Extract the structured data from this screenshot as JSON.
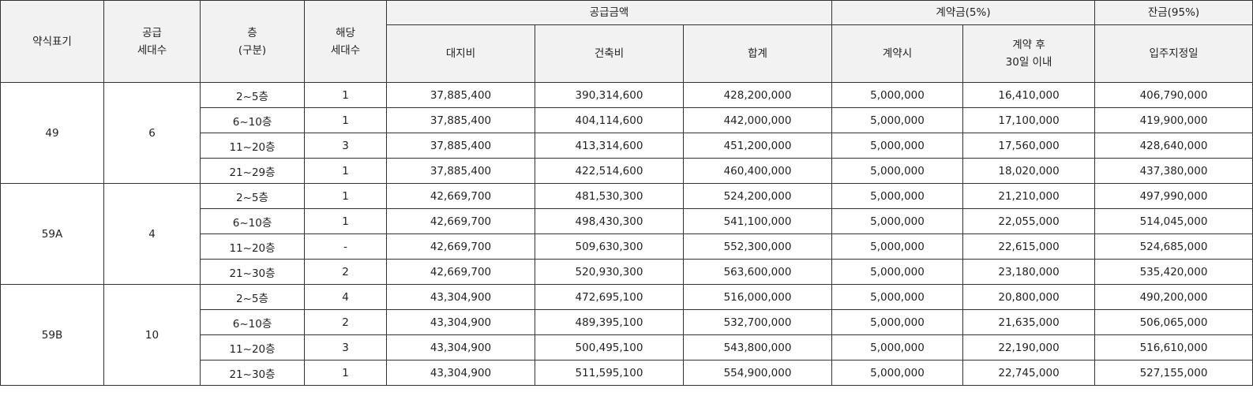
{
  "header": {
    "type_label": "약식표기",
    "supply_units": [
      "공급",
      "세대수"
    ],
    "floor": [
      "층",
      "(구분)"
    ],
    "units": [
      "해당",
      "세대수"
    ],
    "supply_price": "공급금액",
    "land": "대지비",
    "building": "건축비",
    "total": "합계",
    "deposit": "계약금(5%)",
    "at_contract": "계약시",
    "after_contract": [
      "계약 후",
      "30일 이내"
    ],
    "balance": "잔금(95%)",
    "move_in": "입주지정일"
  },
  "groups": [
    {
      "type": "49",
      "supply_units": "6",
      "rows": [
        {
          "floor": "2~5층",
          "units": "1",
          "land": "37,885,400",
          "building": "390,314,600",
          "total": "428,200,000",
          "at_contract": "5,000,000",
          "after_contract": "16,410,000",
          "balance": "406,790,000"
        },
        {
          "floor": "6~10층",
          "units": "1",
          "land": "37,885,400",
          "building": "404,114,600",
          "total": "442,000,000",
          "at_contract": "5,000,000",
          "after_contract": "17,100,000",
          "balance": "419,900,000"
        },
        {
          "floor": "11~20층",
          "units": "3",
          "land": "37,885,400",
          "building": "413,314,600",
          "total": "451,200,000",
          "at_contract": "5,000,000",
          "after_contract": "17,560,000",
          "balance": "428,640,000"
        },
        {
          "floor": "21~29층",
          "units": "1",
          "land": "37,885,400",
          "building": "422,514,600",
          "total": "460,400,000",
          "at_contract": "5,000,000",
          "after_contract": "18,020,000",
          "balance": "437,380,000"
        }
      ]
    },
    {
      "type": "59A",
      "supply_units": "4",
      "rows": [
        {
          "floor": "2~5층",
          "units": "1",
          "land": "42,669,700",
          "building": "481,530,300",
          "total": "524,200,000",
          "at_contract": "5,000,000",
          "after_contract": "21,210,000",
          "balance": "497,990,000"
        },
        {
          "floor": "6~10층",
          "units": "1",
          "land": "42,669,700",
          "building": "498,430,300",
          "total": "541,100,000",
          "at_contract": "5,000,000",
          "after_contract": "22,055,000",
          "balance": "514,045,000"
        },
        {
          "floor": "11~20층",
          "units": "-",
          "land": "42,669,700",
          "building": "509,630,300",
          "total": "552,300,000",
          "at_contract": "5,000,000",
          "after_contract": "22,615,000",
          "balance": "524,685,000"
        },
        {
          "floor": "21~30층",
          "units": "2",
          "land": "42,669,700",
          "building": "520,930,300",
          "total": "563,600,000",
          "at_contract": "5,000,000",
          "after_contract": "23,180,000",
          "balance": "535,420,000"
        }
      ]
    },
    {
      "type": "59B",
      "supply_units": "10",
      "rows": [
        {
          "floor": "2~5층",
          "units": "4",
          "land": "43,304,900",
          "building": "472,695,100",
          "total": "516,000,000",
          "at_contract": "5,000,000",
          "after_contract": "20,800,000",
          "balance": "490,200,000"
        },
        {
          "floor": "6~10층",
          "units": "2",
          "land": "43,304,900",
          "building": "489,395,100",
          "total": "532,700,000",
          "at_contract": "5,000,000",
          "after_contract": "21,635,000",
          "balance": "506,065,000"
        },
        {
          "floor": "11~20층",
          "units": "3",
          "land": "43,304,900",
          "building": "500,495,100",
          "total": "543,800,000",
          "at_contract": "5,000,000",
          "after_contract": "22,190,000",
          "balance": "516,610,000"
        },
        {
          "floor": "21~30층",
          "units": "1",
          "land": "43,304,900",
          "building": "511,595,100",
          "total": "554,900,000",
          "at_contract": "5,000,000",
          "after_contract": "22,745,000",
          "balance": "527,155,000"
        }
      ]
    }
  ]
}
